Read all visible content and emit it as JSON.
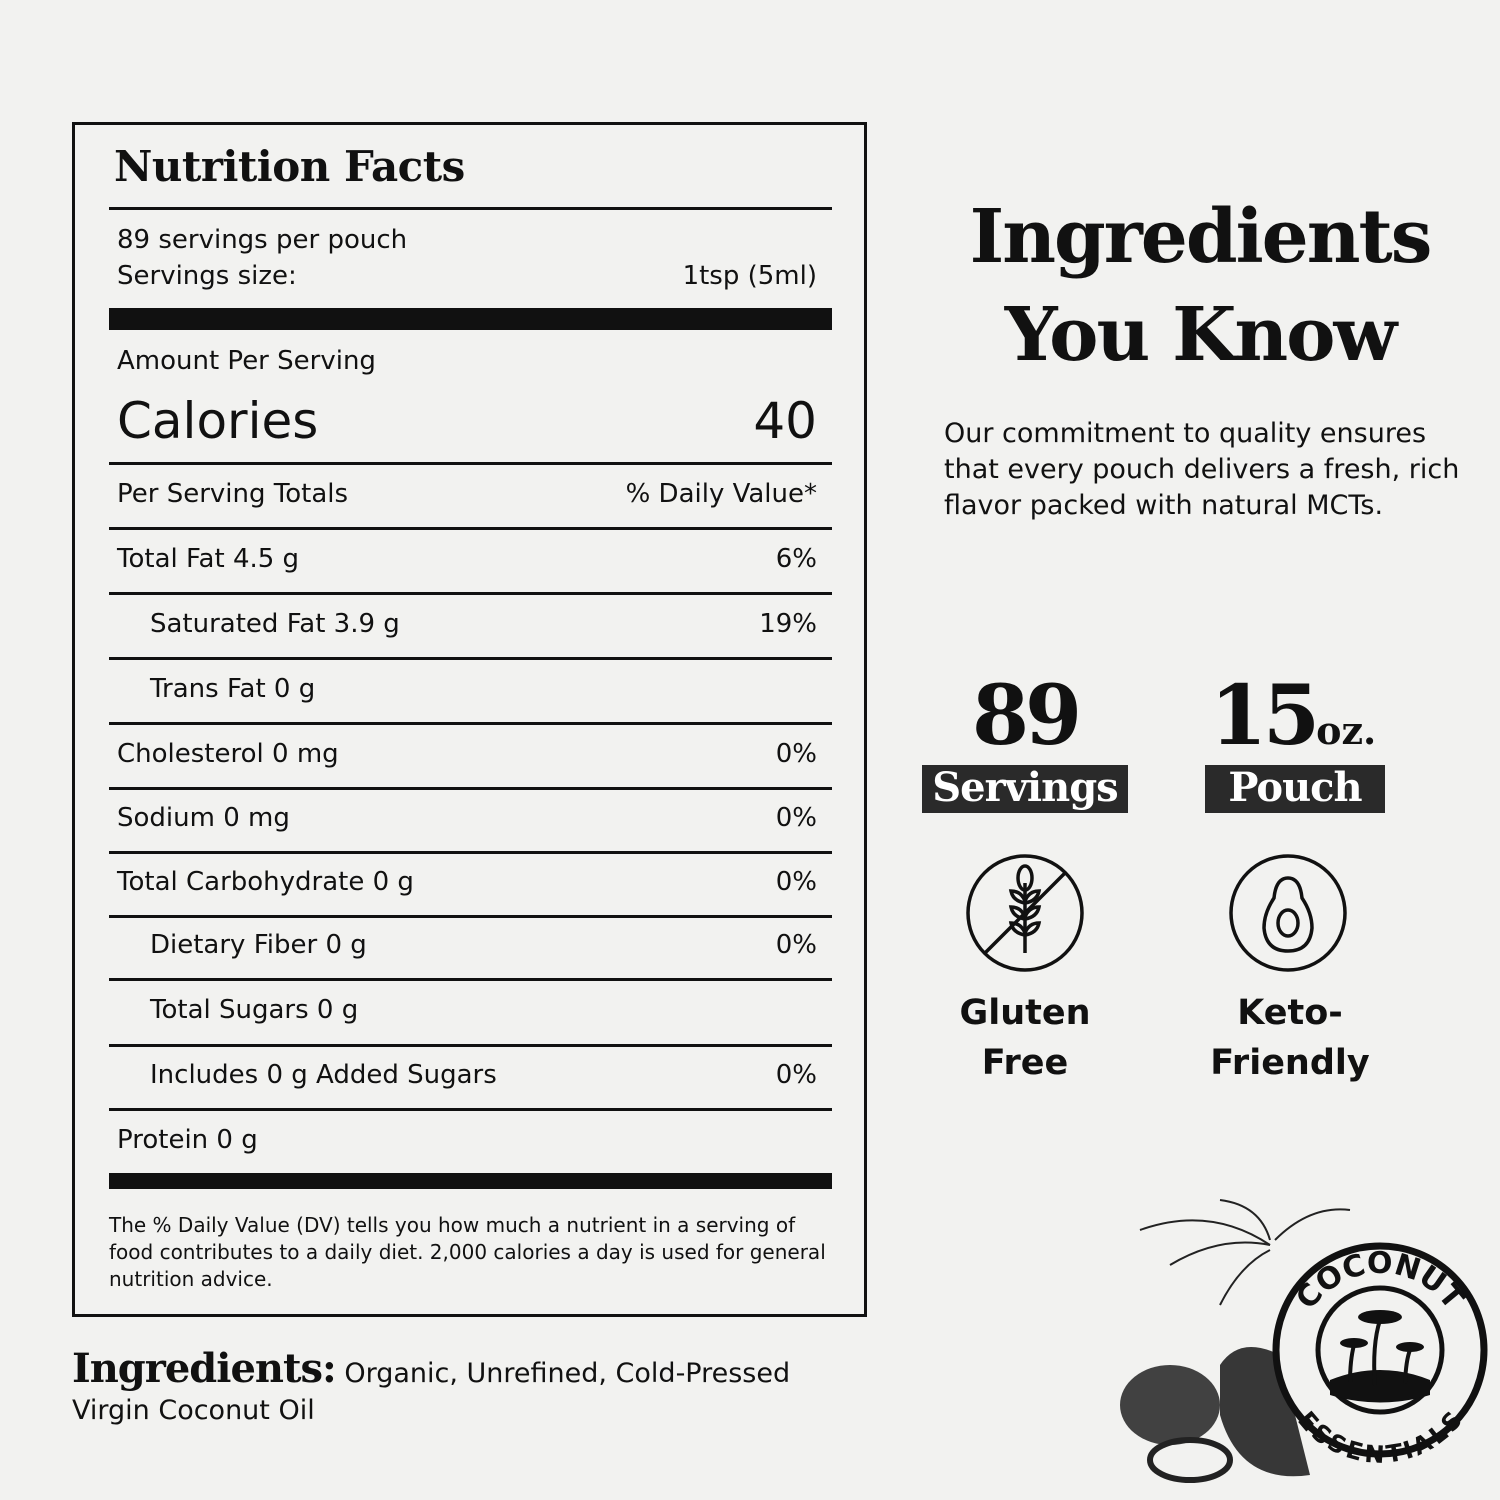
{
  "nutrition": {
    "title": "Nutrition Facts",
    "servings_per": "89 servings per pouch",
    "serving_size_label": "Servings size:",
    "serving_size_value": "1tsp (5ml)",
    "amount_per_serving": "Amount Per Serving",
    "calories_label": "Calories",
    "calories_value": "40",
    "totals_label": "Per Serving Totals",
    "dv_label": "% Daily Value*",
    "rows": [
      {
        "label": "Total Fat  4.5 g",
        "dv": "6%"
      },
      {
        "label": "Saturated Fat 3.9 g",
        "dv": "19%"
      },
      {
        "label": "Trans Fat 0 g",
        "dv": ""
      },
      {
        "label": "Cholesterol 0 mg",
        "dv": "0%"
      },
      {
        "label": "Sodium 0 mg",
        "dv": "0%"
      },
      {
        "label": "Total Carbohydrate 0 g",
        "dv": "0%"
      },
      {
        "label": "Dietary Fiber 0 g",
        "dv": "0%"
      },
      {
        "label": "Total Sugars 0 g",
        "dv": ""
      },
      {
        "label": "Includes 0 g Added Sugars",
        "dv": "0%"
      },
      {
        "label": "Protein 0 g",
        "dv": ""
      }
    ],
    "footnote": "The % Daily Value (DV) tells you how much a nutrient in a serving of food contributes to a daily diet. 2,000 calories a day is used for general nutrition advice."
  },
  "ingredients": {
    "label": "Ingredients:",
    "text": "Organic, Unrefined, Cold-Pressed Virgin Coconut Oil"
  },
  "promo": {
    "heading_line1": "Ingredients",
    "heading_line2": "You Know",
    "description": "Our commitment to quality ensures that every pouch delivers a fresh, rich flavor packed with natural MCTs.",
    "servings_number": "89",
    "servings_label": "Servings",
    "size_number": "15",
    "size_unit": "oz.",
    "size_label": "Pouch",
    "features": [
      {
        "line1": "Gluten",
        "line2": "Free",
        "icon": "gluten-free-icon"
      },
      {
        "line1": "Keto-",
        "line2": "Friendly",
        "icon": "avocado-icon"
      }
    ]
  },
  "logo": {
    "top": "COCONUT",
    "bottom": "ESSENTIALS"
  }
}
